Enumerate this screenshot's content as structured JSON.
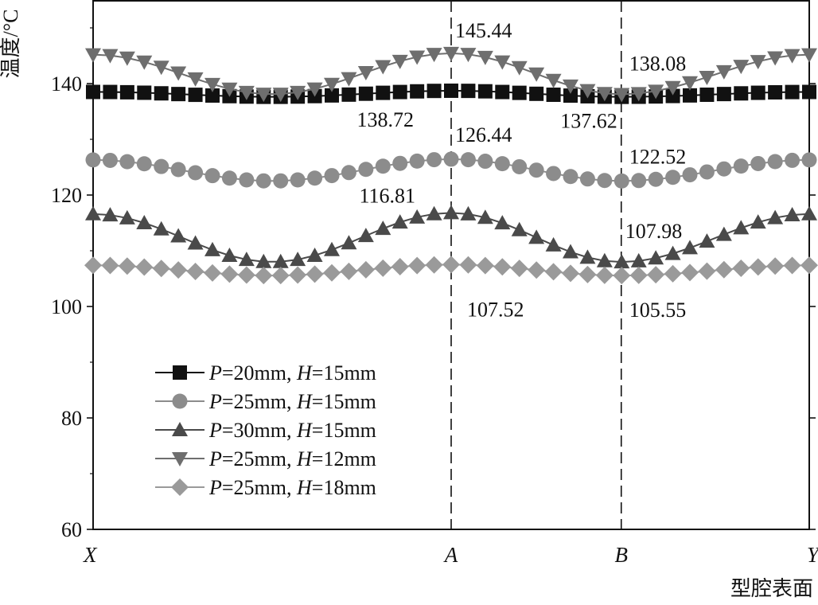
{
  "chart_data": {
    "type": "line",
    "xlabel": "型腔表面",
    "ylabel": "温度/°C",
    "ylim": [
      60,
      155
    ],
    "yticks": [
      60,
      80,
      100,
      120,
      140
    ],
    "xlim": [
      0,
      1
    ],
    "x_tick_labels": [
      {
        "x": 0.0,
        "label": "X"
      },
      {
        "x": 0.5,
        "label": "A"
      },
      {
        "x": 0.7375,
        "label": "B"
      },
      {
        "x": 1.0,
        "label": "Y"
      }
    ],
    "reference_lines": [
      {
        "x": 0.5,
        "label": "A"
      },
      {
        "x": 0.7375,
        "label": "B"
      }
    ],
    "legend": {
      "placement": "lower-left"
    },
    "series": [
      {
        "name": "P=20mm, H=15mm",
        "name_parts": [
          {
            "t": "P",
            "i": true
          },
          {
            "t": "=20mm, ",
            "i": false
          },
          {
            "t": "H",
            "i": true
          },
          {
            "t": "=15mm",
            "i": false
          }
        ],
        "marker": "square",
        "color": "#111111",
        "profile": {
          "A": 138.72,
          "min": 137.62,
          "xmin": 0.25,
          "B": 137.62,
          "Y": 138.5,
          "X": 138.5
        }
      },
      {
        "name": "P=25mm, H=15mm",
        "name_parts": [
          {
            "t": "P",
            "i": true
          },
          {
            "t": "=25mm, ",
            "i": false
          },
          {
            "t": "H",
            "i": true
          },
          {
            "t": "=15mm",
            "i": false
          }
        ],
        "marker": "circle",
        "color": "#8c8c8c",
        "profile": {
          "A": 126.44,
          "min": 122.52,
          "xmin": 0.27,
          "B": 122.52,
          "Y": 126.3,
          "X": 126.3
        }
      },
      {
        "name": "P=30mm, H=15mm",
        "name_parts": [
          {
            "t": "P",
            "i": true
          },
          {
            "t": "=30mm, ",
            "i": false
          },
          {
            "t": "H",
            "i": true
          },
          {
            "t": "=15mm",
            "i": false
          }
        ],
        "marker": "triangle-up",
        "color": "#4a4a4a",
        "profile": {
          "A": 116.81,
          "min": 107.98,
          "xmin": 0.25,
          "B": 107.98,
          "Y": 116.6,
          "X": 116.6
        }
      },
      {
        "name": "P=25mm, H=12mm",
        "name_parts": [
          {
            "t": "P",
            "i": true
          },
          {
            "t": "=25mm, ",
            "i": false
          },
          {
            "t": "H",
            "i": true
          },
          {
            "t": "=12mm",
            "i": false
          }
        ],
        "marker": "triangle-down",
        "color": "#6e6e6e",
        "profile": {
          "A": 145.44,
          "min": 138.08,
          "xmin": 0.25,
          "B": 138.08,
          "Y": 145.2,
          "X": 145.2
        }
      },
      {
        "name": "P=25mm, H=18mm",
        "name_parts": [
          {
            "t": "P",
            "i": true
          },
          {
            "t": "=25mm, ",
            "i": false
          },
          {
            "t": "H",
            "i": true
          },
          {
            "t": "=18mm",
            "i": false
          }
        ],
        "marker": "diamond",
        "color": "#9a9a9a",
        "profile": {
          "A": 107.52,
          "min": 105.55,
          "xmin": 0.27,
          "B": 105.55,
          "Y": 107.4,
          "X": 107.4
        }
      }
    ],
    "annotations": [
      {
        "text": "145.44",
        "x": 0.5,
        "y": 145.44
      },
      {
        "text": "138.08",
        "x": 0.7375,
        "y": 138.08
      },
      {
        "text": "138.72",
        "x": 0.5,
        "y": 138.72
      },
      {
        "text": "137.62",
        "x": 0.7375,
        "y": 137.62
      },
      {
        "text": "126.44",
        "x": 0.5,
        "y": 126.44
      },
      {
        "text": "122.52",
        "x": 0.7375,
        "y": 122.52
      },
      {
        "text": "116.81",
        "x": 0.5,
        "y": 116.81
      },
      {
        "text": "107.98",
        "x": 0.7375,
        "y": 107.98
      },
      {
        "text": "107.52",
        "x": 0.5,
        "y": 107.52
      },
      {
        "text": "105.55",
        "x": 0.7375,
        "y": 105.55
      }
    ]
  }
}
